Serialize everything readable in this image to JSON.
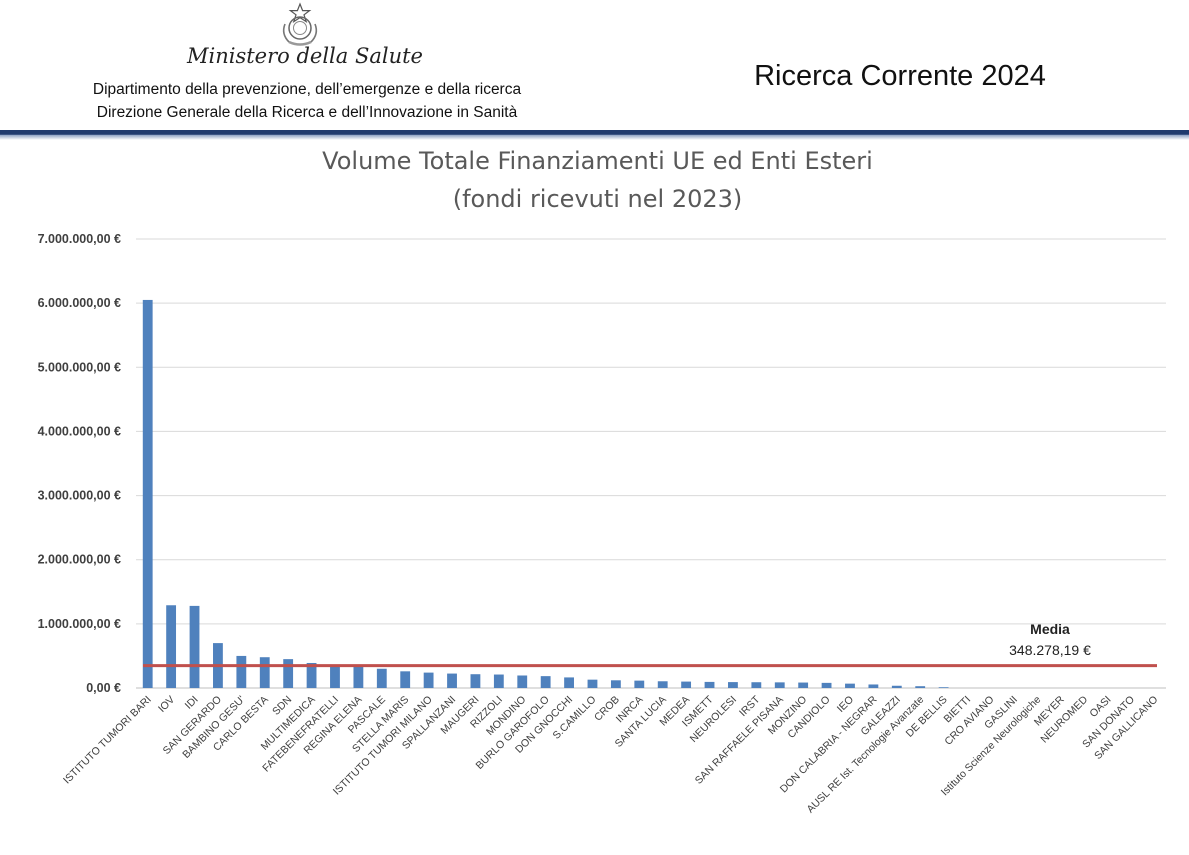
{
  "header": {
    "ministry": "Ministero della Salute",
    "department": "Dipartimento della prevenzione, dell’emergenze e della ricerca",
    "directorate": "Direzione Generale della Ricerca e dell’Innovazione in Sanità",
    "report_title": "Ricerca Corrente 2024",
    "emblem_icon": "italian-republic-emblem-icon",
    "rule_color": "#1f3a6e"
  },
  "chart_data": {
    "type": "bar",
    "title": "Volume Totale Finanziamenti  UE ed Enti Esteri",
    "subtitle": "(fondi ricevuti nel 2023)",
    "xlabel": "",
    "ylabel": "",
    "ylim": [
      0,
      7000000
    ],
    "ytick_values": [
      0,
      1000000,
      2000000,
      3000000,
      4000000,
      5000000,
      6000000,
      7000000
    ],
    "ytick_labels": [
      "0,00 €",
      "1.000.000,00 €",
      "2.000.000,00 €",
      "3.000.000,00 €",
      "4.000.000,00 €",
      "5.000.000,00 €",
      "6.000.000,00 €",
      "7.000.000,00 €"
    ],
    "grid": true,
    "legend": "none",
    "bar_color": "#4f81bd",
    "categories": [
      "ISTITUTO TUMORI BARI",
      "IOV",
      "IDI",
      "SAN GERARDO",
      "BAMBINO GESU'",
      "CARLO BESTA",
      "SDN",
      "MULTIMEDICA",
      "FATEBENEFRATELLI",
      "REGINA ELENA",
      "PASCALE",
      "STELLA MARIS",
      "ISTITUTO TUMORI MILANO",
      "SPALLANZANI",
      "MAUGERI",
      "RIZZOLI",
      "MONDINO",
      "BURLO GAROFOLO",
      "DON GNOCCHI",
      "S.CAMILLO",
      "CROB",
      "INRCA",
      "SANTA LUCIA",
      "MEDEA",
      "ISMETT",
      "NEUROLESI",
      "IRST",
      "SAN RAFFAELE PISANA",
      "MONZINO",
      "CANDIOLO",
      "IEO",
      "DON CALABRIA - NEGRAR",
      "GALEAZZI",
      "AUSL RE Ist. Tecnologie Avanzate",
      "DE BELLIS",
      "BIETTI",
      "CRO AVIANO",
      "GASLINI",
      "Istituto Scienze Neurologiche",
      "MEYER",
      "NEUROMED",
      "OASI",
      "SAN DONATO",
      "SAN GALLICANO"
    ],
    "values": [
      6050000,
      1290000,
      1280000,
      700000,
      500000,
      480000,
      450000,
      390000,
      340000,
      330000,
      300000,
      260000,
      240000,
      225000,
      215000,
      210000,
      195000,
      185000,
      165000,
      130000,
      120000,
      115000,
      105000,
      100000,
      95000,
      92000,
      90000,
      88000,
      85000,
      80000,
      68000,
      55000,
      35000,
      28000,
      12000,
      0,
      0,
      0,
      0,
      0,
      0,
      0,
      0,
      0
    ],
    "average": {
      "label": "Media",
      "value": 348278.19,
      "value_label": "348.278,19 €",
      "color": "#c0504d"
    }
  }
}
